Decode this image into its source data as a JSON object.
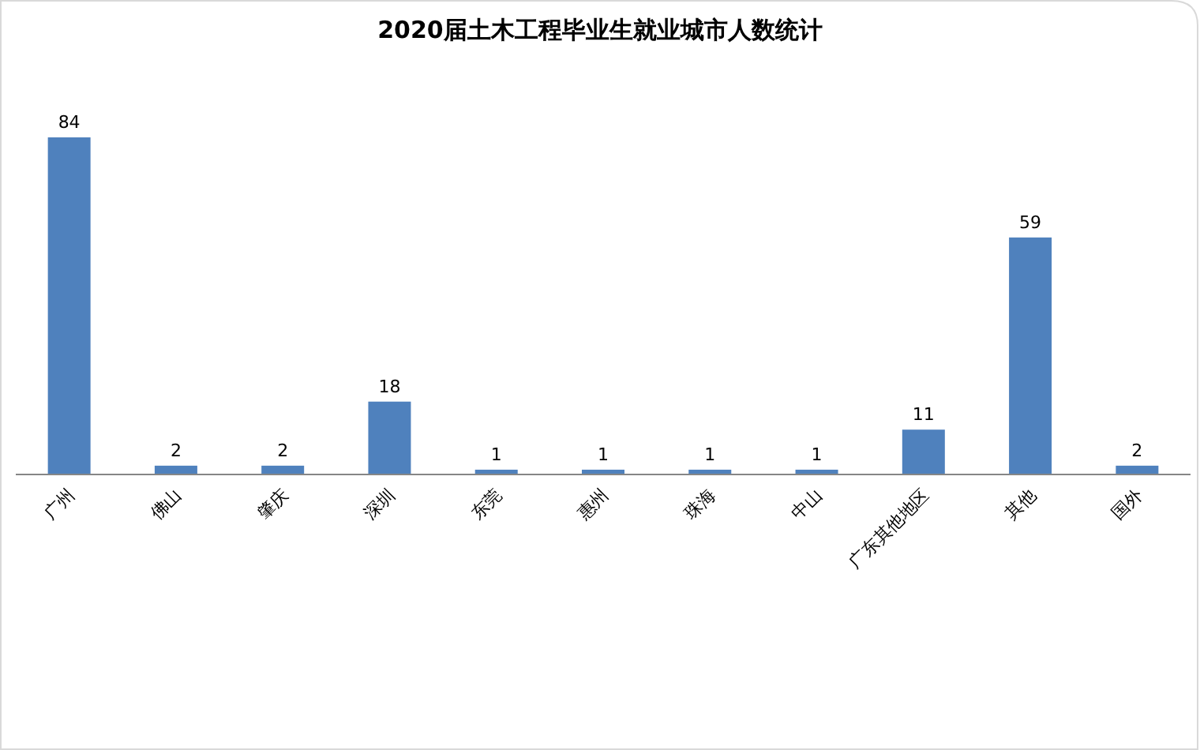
{
  "chart_data": {
    "type": "bar",
    "title": "2020届土木工程毕业生就业城市人数统计",
    "categories": [
      "广州",
      "佛山",
      "肇庆",
      "深圳",
      "东莞",
      "惠州",
      "珠海",
      "中山",
      "广东其他地区",
      "其他",
      "国外"
    ],
    "values": [
      84,
      2,
      2,
      18,
      1,
      1,
      1,
      1,
      11,
      59,
      2
    ],
    "color": "#4f81bd",
    "data_labels": true
  }
}
